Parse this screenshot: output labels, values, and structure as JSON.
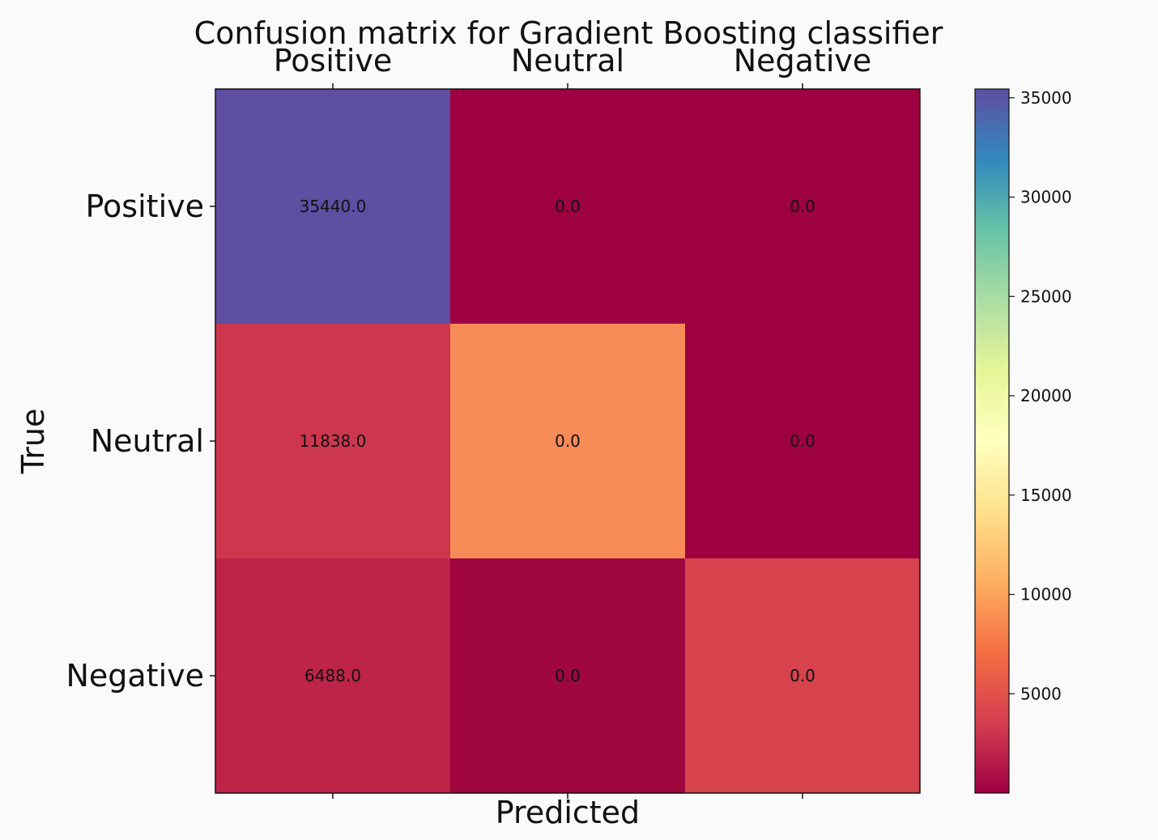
{
  "chart_data": {
    "type": "heatmap",
    "title": "Confusion matrix for Gradient Boosting classifier",
    "xlabel": "Predicted",
    "ylabel": "True",
    "x_categories": [
      "Positive",
      "Neutral",
      "Negative"
    ],
    "y_categories": [
      "Positive",
      "Neutral",
      "Negative"
    ],
    "cells": [
      [
        {
          "label": "35440.0",
          "color": "#5e4fa2"
        },
        {
          "label": "0.0",
          "color": "#9e0142"
        },
        {
          "label": "0.0",
          "color": "#9e0142"
        }
      ],
      [
        {
          "label": "11838.0",
          "color": "#cc374d"
        },
        {
          "label": "0.0",
          "color": "#f68b58"
        },
        {
          "label": "0.0",
          "color": "#9e0142"
        }
      ],
      [
        {
          "label": "6488.0",
          "color": "#be2448"
        },
        {
          "label": "0.0",
          "color": "#a0073f"
        },
        {
          "label": "0.0",
          "color": "#d6434d"
        }
      ]
    ],
    "colorbar": {
      "colormap": "Spectral",
      "range": [
        0,
        35440
      ],
      "ticks": [
        5000,
        10000,
        15000,
        20000,
        25000,
        30000,
        35000
      ],
      "tick_labels": [
        "5000",
        "10000",
        "15000",
        "20000",
        "25000",
        "30000",
        "35000"
      ],
      "colors": [
        "#9e0142",
        "#d53e4f",
        "#f46d43",
        "#fdae61",
        "#fee08b",
        "#ffffbf",
        "#e6f598",
        "#abdda4",
        "#66c2a5",
        "#3288bd",
        "#5e4fa2"
      ]
    }
  }
}
